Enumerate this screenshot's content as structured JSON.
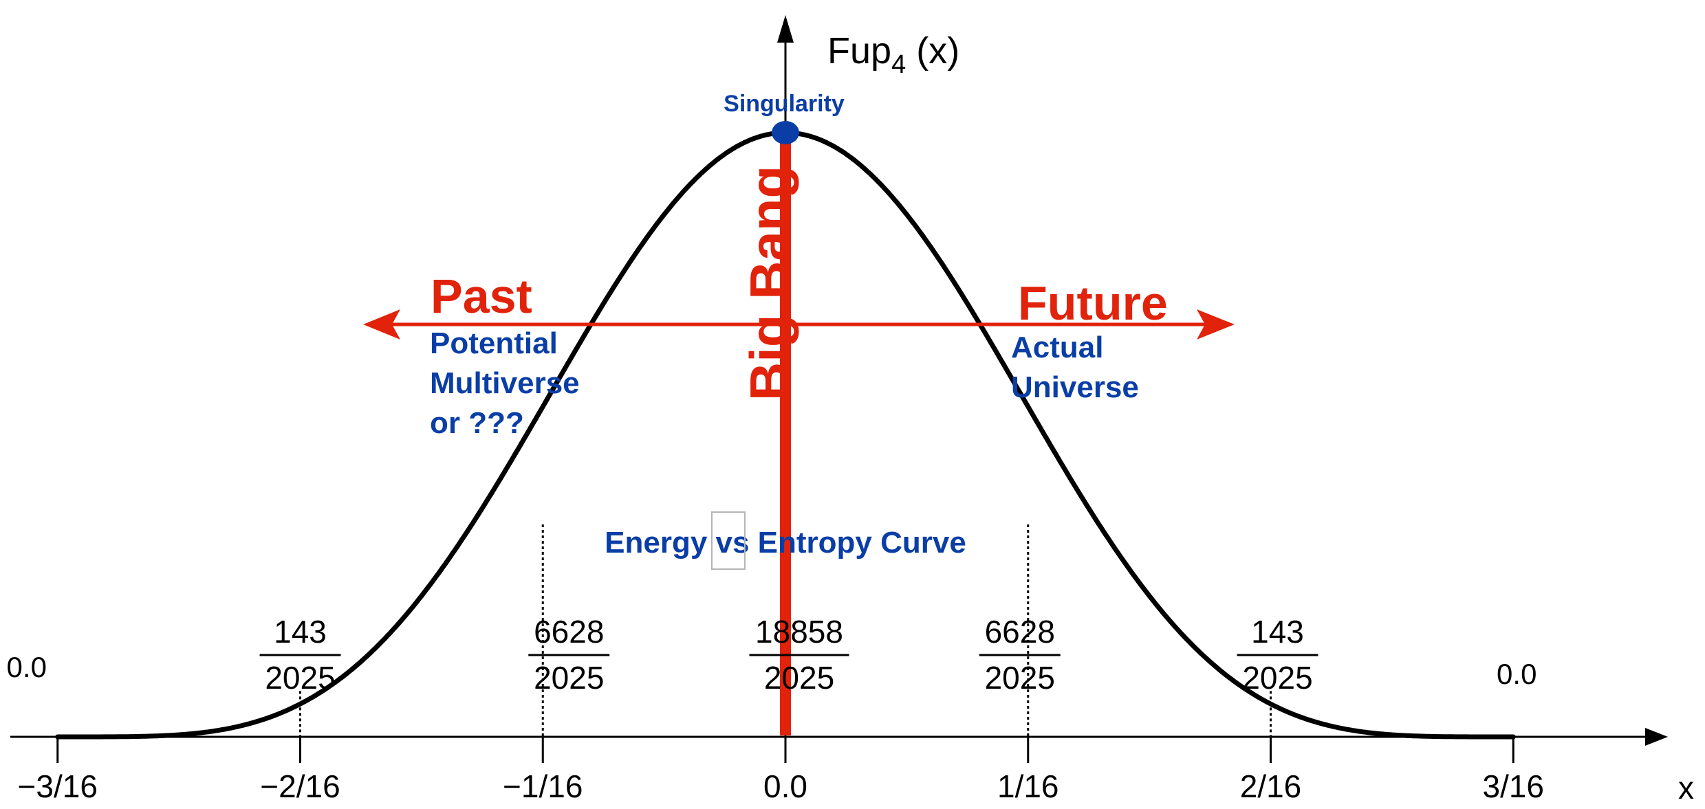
{
  "axes": {
    "y_label_main": "Fup",
    "y_label_sub": "4",
    "y_label_arg": " (x)",
    "x_label": "x"
  },
  "x_ticks": [
    {
      "value": -0.1875,
      "label": "−3/16"
    },
    {
      "value": -0.125,
      "label": "−2/16"
    },
    {
      "value": -0.0625,
      "label": "−1/16"
    },
    {
      "value": 0.0,
      "label": "0.0"
    },
    {
      "value": 0.0625,
      "label": "1/16"
    },
    {
      "value": 0.125,
      "label": "2/16"
    },
    {
      "value": 0.1875,
      "label": "3/16"
    }
  ],
  "point_values": [
    {
      "x": -0.1875,
      "kind": "plain",
      "text": "0.0"
    },
    {
      "x": -0.125,
      "kind": "fraction",
      "numerator": "143",
      "denominator": "2025"
    },
    {
      "x": -0.0625,
      "kind": "fraction",
      "numerator": "6628",
      "denominator": "2025"
    },
    {
      "x": 0.0,
      "kind": "fraction",
      "numerator": "18858",
      "denominator": "2025"
    },
    {
      "x": 0.0625,
      "kind": "fraction",
      "numerator": "6628",
      "denominator": "2025"
    },
    {
      "x": 0.125,
      "kind": "fraction",
      "numerator": "143",
      "denominator": "2025"
    },
    {
      "x": 0.1875,
      "kind": "plain",
      "text": "0.0"
    }
  ],
  "annotations": {
    "singularity": "Singularity",
    "big_bang": "Big Bang",
    "past": "Past",
    "future": "Future",
    "past_desc": [
      "Potential",
      "Multiverse",
      "or ???"
    ],
    "future_desc": [
      "Actual",
      "Universe"
    ],
    "curve_label": "Energy vs Entropy Curve"
  },
  "colors": {
    "curve": "#000000",
    "highlight_red": "#e1230b",
    "annotation_blue": "#0a3ea6"
  }
}
